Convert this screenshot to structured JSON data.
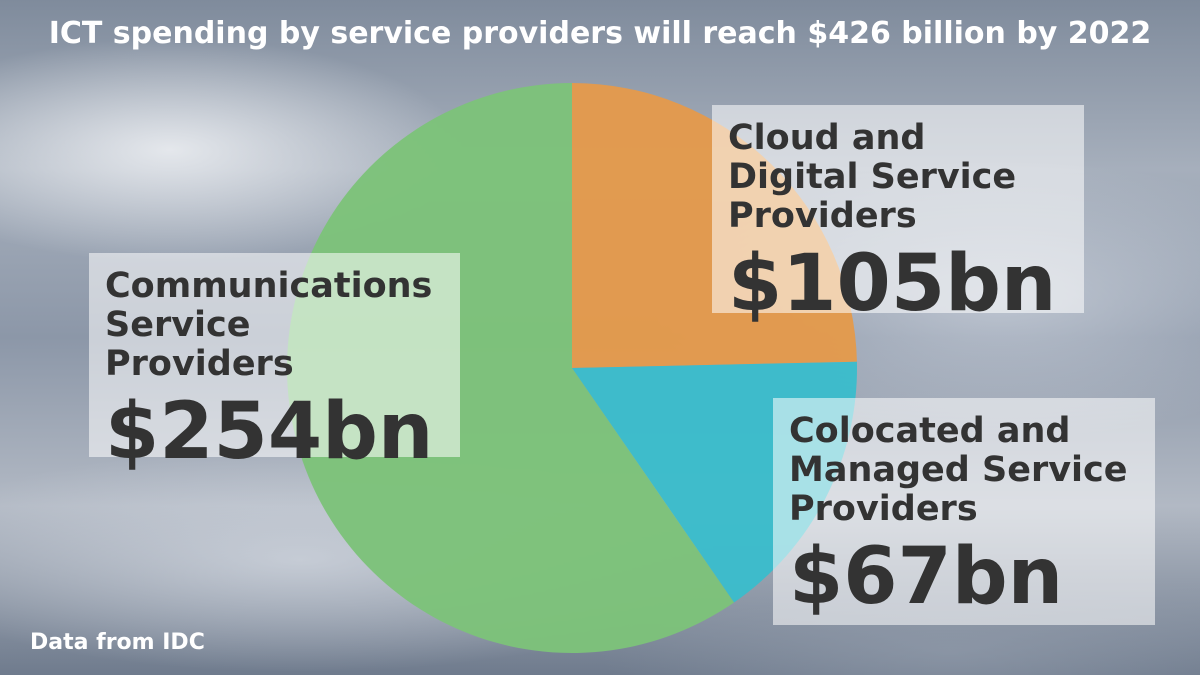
{
  "chart_data": {
    "type": "pie",
    "title": "ICT spending by service providers will reach $426 billion by 2022",
    "source": "Data from IDC",
    "categories": [
      "Cloud and Digital Service Providers",
      "Colocated and Managed Service Providers",
      "Communications Service Providers"
    ],
    "values": [
      105,
      67,
      254
    ],
    "value_labels": [
      "$105bn",
      "$67bn",
      "$254bn"
    ],
    "colors": [
      "#e39a4c",
      "#3bbccb",
      "#7dc27a"
    ]
  }
}
